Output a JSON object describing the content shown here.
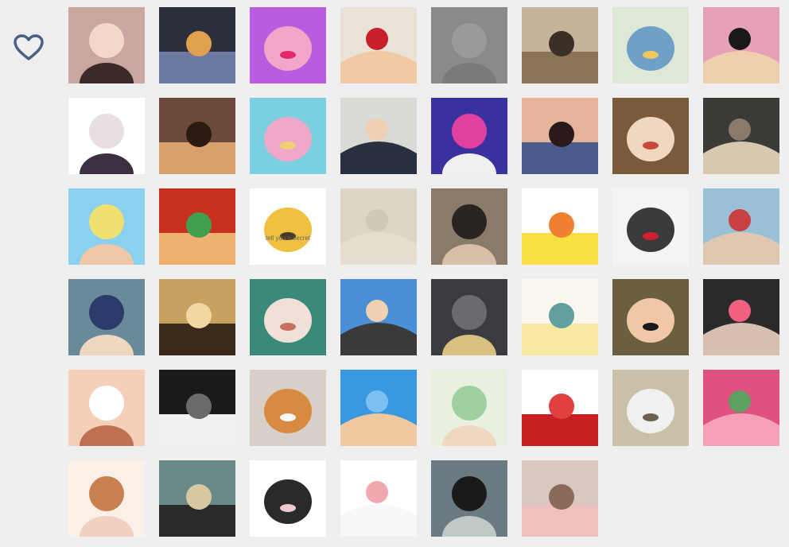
{
  "sidebar": {
    "favorite_icon": "heart-outline-icon",
    "icon_color": "#4a5f86"
  },
  "grid": {
    "columns": 8,
    "tiles": [
      {
        "name": "girl-glasses-selfie",
        "caption": "",
        "bg": "#c9a7a0",
        "fg": "#f3d6c8",
        "accent": "#3a2a28"
      },
      {
        "name": "night-street-mural",
        "caption": "",
        "bg": "#2a2f3a",
        "fg": "#6a7aa0",
        "accent": "#e0a050"
      },
      {
        "name": "pink-pig-sunglasses",
        "caption": "",
        "bg": "#b85ce0",
        "fg": "#f4a6c8",
        "accent": "#e02a6a"
      },
      {
        "name": "anime-boy-peace-sign",
        "caption": "",
        "bg": "#e9e2d6",
        "fg": "#f2c9a5",
        "accent": "#c8202a"
      },
      {
        "name": "gray-blank",
        "caption": "",
        "bg": "#8a8a8a",
        "fg": "#9a9a9a",
        "accent": "#7a7a7a"
      },
      {
        "name": "sleeping-tabby-cat",
        "caption": "",
        "bg": "#c6b49a",
        "fg": "#8a7458",
        "accent": "#3a3026"
      },
      {
        "name": "couple-illustration-bike",
        "caption": "",
        "bg": "#dde8d6",
        "fg": "#6fa0c8",
        "accent": "#f0c860"
      },
      {
        "name": "bob-hair-funny-face",
        "caption": "",
        "bg": "#e6a0b8",
        "fg": "#f0cfaf",
        "accent": "#1a1a1a"
      },
      {
        "name": "girl-dark-dress",
        "caption": "",
        "bg": "#ffffff",
        "fg": "#e8e0e0",
        "accent": "#3a3040"
      },
      {
        "name": "puppy-covering-face",
        "caption": "",
        "bg": "#6a4a3a",
        "fg": "#d8a06a",
        "accent": "#2a1a12"
      },
      {
        "name": "anime-girl-pink-chair",
        "caption": "",
        "bg": "#7ad0e0",
        "fg": "#f0a8c8",
        "accent": "#f0d070"
      },
      {
        "name": "man-in-suit-speaking",
        "caption": "",
        "bg": "#d8dbd6",
        "fg": "#2a3040",
        "accent": "#f0d0b0"
      },
      {
        "name": "stage-pink-couple",
        "caption": "",
        "bg": "#3a30a0",
        "fg": "#e040a0",
        "accent": "#f0f0f0"
      },
      {
        "name": "girl-blue-coat",
        "caption": "",
        "bg": "#e6b49a",
        "fg": "#4a5a8a",
        "accent": "#2a1a1a"
      },
      {
        "name": "two-kids",
        "caption": "",
        "bg": "#7a5a3a",
        "fg": "#f0d8c0",
        "accent": "#c84a3a"
      },
      {
        "name": "girl-cafe-bar",
        "caption": "",
        "bg": "#3a3a36",
        "fg": "#d8c8b0",
        "accent": "#8a7a6a"
      },
      {
        "name": "cartoon-boy-blue-hat",
        "caption": "",
        "bg": "#8ad0f0",
        "fg": "#f0e070",
        "accent": "#f0c8a8"
      },
      {
        "name": "angry-redhead-anime",
        "caption": "",
        "bg": "#c83020",
        "fg": "#f0b070",
        "accent": "#40a050"
      },
      {
        "name": "tell-you-a-secret",
        "caption": "tell you a secret",
        "bg": "#ffffff",
        "fg": "#f0c040",
        "accent": "#4a3a2a"
      },
      {
        "name": "beige-blank",
        "caption": "",
        "bg": "#ddd6c8",
        "fg": "#e4ddd0",
        "accent": "#cfc7b8"
      },
      {
        "name": "girl-street-cafe",
        "caption": "",
        "bg": "#8a7a6a",
        "fg": "#2a2420",
        "accent": "#d8c0a8"
      },
      {
        "name": "yellow-duck-sticker",
        "caption": "",
        "bg": "#ffffff",
        "fg": "#f8e040",
        "accent": "#f08030"
      },
      {
        "name": "black-cat-red-scarf",
        "caption": "",
        "bg": "#f4f4f4",
        "fg": "#3a3a3a",
        "accent": "#d02030"
      },
      {
        "name": "girl-curly-hair-street",
        "caption": "",
        "bg": "#9ac0d8",
        "fg": "#e0c8b0",
        "accent": "#c84040"
      },
      {
        "name": "anime-girl-blue-hair",
        "caption": "",
        "bg": "#6a8a9a",
        "fg": "#2a3a6a",
        "accent": "#f0d8c0"
      },
      {
        "name": "girl-sunset-beach",
        "caption": "",
        "bg": "#c8a060",
        "fg": "#3a2a1a",
        "accent": "#f0d8a0"
      },
      {
        "name": "girl-with-cony-bear",
        "caption": "",
        "bg": "#3a8a7a",
        "fg": "#f0e0d8",
        "accent": "#c87060"
      },
      {
        "name": "boy-sunglasses-city",
        "caption": "",
        "bg": "#4a90d8",
        "fg": "#3a3a3a",
        "accent": "#f0d0b0"
      },
      {
        "name": "gray-cat-closeup",
        "caption": "",
        "bg": "#3a3a40",
        "fg": "#6a6a70",
        "accent": "#d8c080"
      },
      {
        "name": "chick-drinking-sticker",
        "caption": "",
        "bg": "#fbf7ee",
        "fg": "#f8e8a0",
        "accent": "#60a0a0"
      },
      {
        "name": "chibi-maruko",
        "caption": "",
        "bg": "#6a6040",
        "fg": "#f0c8a8",
        "accent": "#1a1a1a"
      },
      {
        "name": "boy-black-mask",
        "caption": "",
        "bg": "#2a2a2a",
        "fg": "#d8c0b0",
        "accent": "#f06080"
      },
      {
        "name": "hamster-sticker",
        "caption": "",
        "bg": "#f4d0b8",
        "fg": "#ffffff",
        "accent": "#c07050"
      },
      {
        "name": "husky-dog",
        "caption": "",
        "bg": "#1a1a1a",
        "fg": "#f0f0f0",
        "accent": "#6a6a6a"
      },
      {
        "name": "corgi-dog",
        "caption": "",
        "bg": "#d8d0c8",
        "fg": "#d88a40",
        "accent": "#f8f8f8"
      },
      {
        "name": "hand-heart-sky",
        "caption": "",
        "bg": "#3a98e0",
        "fg": "#f0c8a0",
        "accent": "#7ac0f0"
      },
      {
        "name": "anime-girl-green-hair",
        "caption": "",
        "bg": "#e8f0e0",
        "fg": "#a0d0a0",
        "accent": "#f0d8c0"
      },
      {
        "name": "fairy-tail-logo",
        "caption": "",
        "bg": "#ffffff",
        "fg": "#c82020",
        "accent": "#e04040"
      },
      {
        "name": "kid-dancing-studio",
        "caption": "",
        "bg": "#c8c0a8",
        "fg": "#f0f0f0",
        "accent": "#6a6050"
      },
      {
        "name": "pink-roses",
        "caption": "",
        "bg": "#e05080",
        "fg": "#f8a0b8",
        "accent": "#60a060"
      },
      {
        "name": "chibi-girl-brown-hair",
        "caption": "",
        "bg": "#fbf0e8",
        "fg": "#c88050",
        "accent": "#f0d0c0"
      },
      {
        "name": "girl-park-path",
        "caption": "",
        "bg": "#6a8a8a",
        "fg": "#2a2a2a",
        "accent": "#d8c8a0"
      },
      {
        "name": "bunny-ear-girl",
        "caption": "",
        "bg": "#ffffff",
        "fg": "#2a2a2a",
        "accent": "#f0c8d0"
      },
      {
        "name": "white-cat-cartoon",
        "caption": "",
        "bg": "#ffffff",
        "fg": "#f8f8f8",
        "accent": "#f0a8b0"
      },
      {
        "name": "silhouette-sea",
        "caption": "",
        "bg": "#6a7a80",
        "fg": "#1a1a1a",
        "accent": "#c0c8c8"
      },
      {
        "name": "piglet-in-hands",
        "caption": "",
        "bg": "#d8c8c0",
        "fg": "#f0c0c0",
        "accent": "#8a6a5a"
      }
    ]
  }
}
